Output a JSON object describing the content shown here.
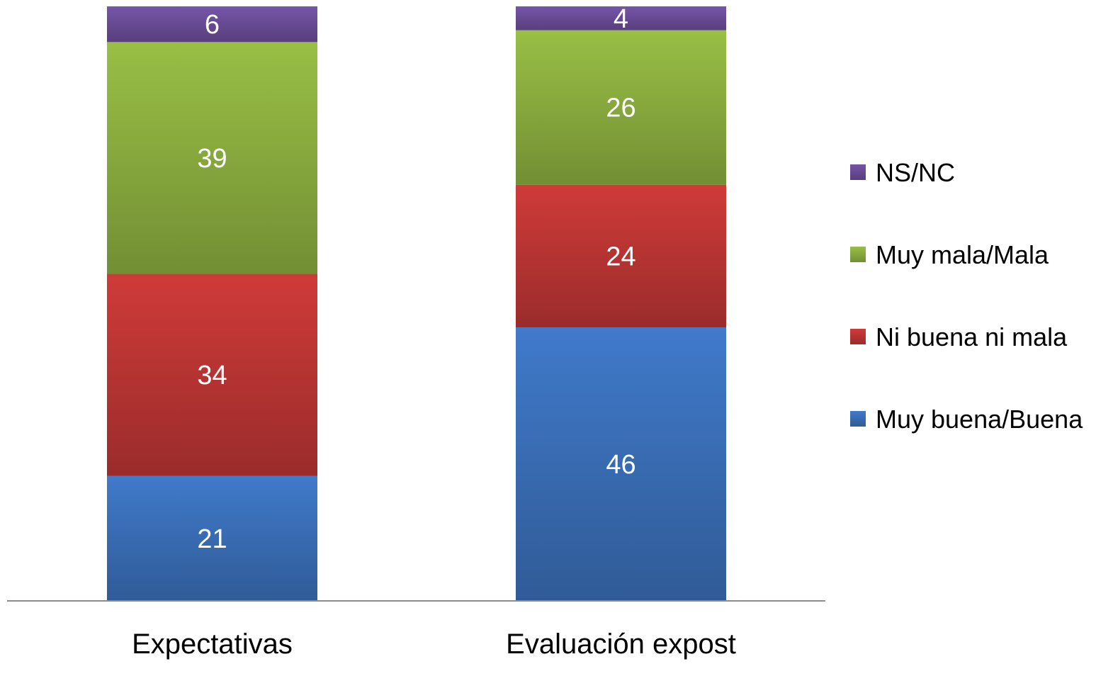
{
  "chart_data": {
    "type": "bar",
    "stacked": true,
    "categories": [
      "Expectativas",
      "Evaluación expost"
    ],
    "series": [
      {
        "name": "Muy buena/Buena",
        "values": [
          21,
          46
        ],
        "color": "#3a6fb8"
      },
      {
        "name": "Ni buena ni mala",
        "values": [
          34,
          24
        ],
        "color": "#bc3634"
      },
      {
        "name": "Muy mala/Mala",
        "values": [
          39,
          26
        ],
        "color": "#8bae3f"
      },
      {
        "name": "NS/NC",
        "values": [
          6,
          4
        ],
        "color": "#6b4d99"
      }
    ],
    "legend_order": [
      "NS/NC",
      "Muy mala/Mala",
      "Ni buena ni mala",
      "Muy buena/Buena"
    ],
    "legend_position": "right",
    "ylim": [
      0,
      100
    ],
    "grid": false,
    "title": "",
    "xlabel": "",
    "ylabel": ""
  }
}
